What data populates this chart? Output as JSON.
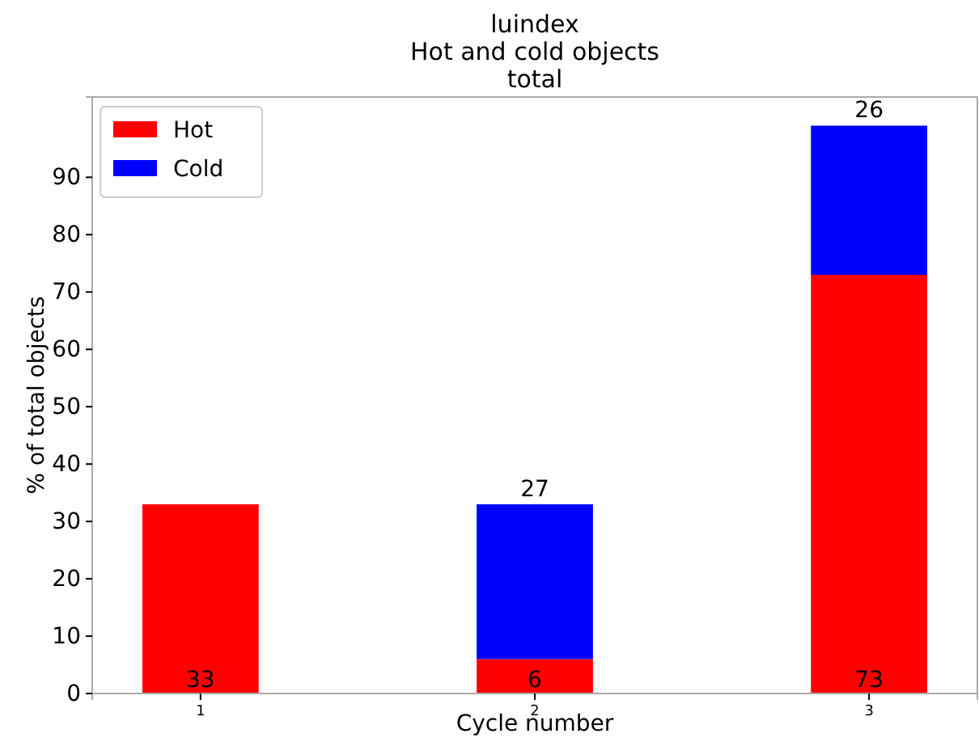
{
  "chart_data": {
    "type": "bar",
    "title": "luindex\nHot and cold objects\ntotal",
    "xlabel": "Cycle number",
    "ylabel": "% of total objects",
    "categories": [
      "1",
      "2",
      "3"
    ],
    "stacked": true,
    "series": [
      {
        "name": "Hot",
        "color": "#ff0000",
        "values": [
          33,
          6,
          73
        ],
        "value_labels": [
          "33",
          "6",
          "73"
        ]
      },
      {
        "name": "Cold",
        "color": "#0000ff",
        "values": [
          null,
          27,
          26
        ],
        "value_labels": [
          null,
          "27",
          "26"
        ]
      }
    ],
    "ylim": [
      0,
      104
    ],
    "yticks": [
      0,
      10,
      20,
      30,
      40,
      50,
      60,
      70,
      80,
      90
    ],
    "legend": "top left",
    "grid": false
  }
}
